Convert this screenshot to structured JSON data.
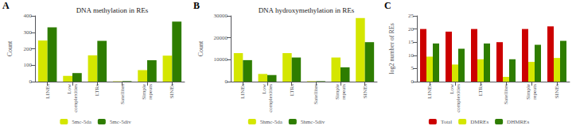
{
  "chart_data": [
    {
      "type": "bar",
      "title": "DNA methylation in REs",
      "annotations": [
        "A"
      ],
      "categories": [
        "LINEs",
        "Low\ncomplexities",
        "LTRs",
        "Satellites",
        "Simple\nrepeats",
        "SINEs"
      ],
      "series": [
        {
          "name": "5mc-5da",
          "color": "#d4e600",
          "values": [
            250,
            35,
            160,
            2,
            70,
            158
          ]
        },
        {
          "name": "5mc-5div",
          "color": "#2e7d00",
          "values": [
            330,
            52,
            248,
            3,
            130,
            365
          ]
        }
      ],
      "ylabel": "Count",
      "ylim": [
        0,
        400
      ],
      "yticks": [
        0,
        100,
        200,
        300,
        400
      ],
      "grid": false,
      "legend": "bottom"
    },
    {
      "type": "bar",
      "title": "DNA hydroxymethylation in REs",
      "annotations": [
        "B"
      ],
      "categories": [
        "LINEs",
        "Low\ncomplexities",
        "LTRs",
        "Satellites",
        "Simple\nrepeats",
        "SINEs"
      ],
      "series": [
        {
          "name": "5hmc-5da",
          "color": "#d4e600",
          "values": [
            13000,
            3500,
            13000,
            200,
            11000,
            29000
          ]
        },
        {
          "name": "5hmc-5div",
          "color": "#2e7d00",
          "values": [
            9800,
            3000,
            11000,
            200,
            6500,
            18000
          ]
        }
      ],
      "ylabel": "Count",
      "ylim": [
        0,
        30000
      ],
      "yticks": [
        0,
        10000,
        20000,
        30000
      ],
      "grid": false,
      "legend": "bottom"
    },
    {
      "type": "bar",
      "annotations": [
        "C"
      ],
      "categories": [
        "LINEs",
        "Low\ncomplexities",
        "LTRs",
        "Satellites",
        "Simple\nrepeats",
        "SINEs"
      ],
      "series": [
        {
          "name": "Total",
          "color": "#cc0000",
          "values": [
            20,
            19,
            20,
            15,
            20,
            21
          ]
        },
        {
          "name": "DMREs",
          "color": "#d4e600",
          "values": [
            9.5,
            6.5,
            8.5,
            1.8,
            7.5,
            9.0
          ]
        },
        {
          "name": "DHMREs",
          "color": "#2e7d00",
          "values": [
            14.5,
            12.5,
            14.5,
            8.5,
            14.0,
            15.5
          ]
        }
      ],
      "ylabel": "log2 number of REs",
      "ylim": [
        0,
        25
      ],
      "yticks": [
        0,
        5,
        10,
        15,
        20,
        25
      ],
      "grid": false,
      "legend": "bottom"
    }
  ]
}
